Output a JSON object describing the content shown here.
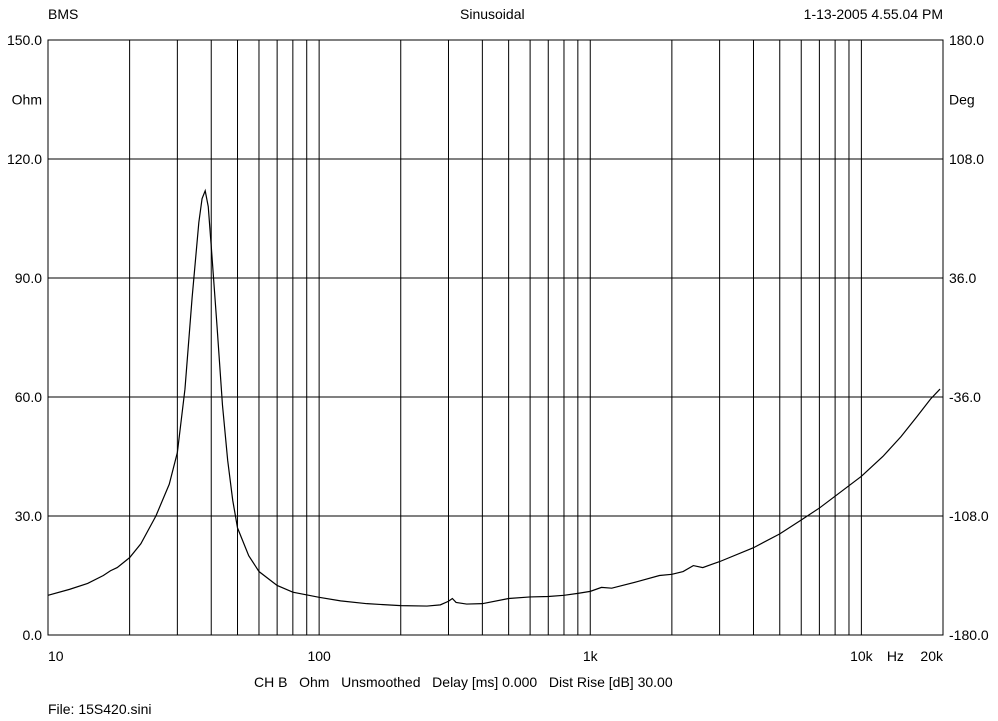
{
  "header": {
    "left": "BMS",
    "center": "Sinusoidal",
    "right": "1-13-2005 4.55.04 PM"
  },
  "footer": {
    "channel_info": "CH B   Ohm   Unsmoothed   Delay [ms] 0.000   Dist Rise [dB] 30.00",
    "file": "File: 15S420.sini"
  },
  "colors": {
    "grid": "#000000",
    "curve": "#000000",
    "background": "#ffffff"
  },
  "chart_data": {
    "type": "line",
    "title": "Sinusoidal",
    "x_scale": "log",
    "xlim": [
      10,
      20000
    ],
    "ylim": [
      0,
      150
    ],
    "y2lim": [
      -180,
      180
    ],
    "grid": true,
    "x_tick_labels": [
      {
        "value": 10,
        "label": "10"
      },
      {
        "value": 100,
        "label": "100"
      },
      {
        "value": 1000,
        "label": "1k"
      },
      {
        "value": 10000,
        "label": "10k"
      },
      {
        "value": 20000,
        "label": "20k"
      }
    ],
    "x_unit": "Hz",
    "y_ticks": [
      0,
      30,
      60,
      90,
      120,
      150
    ],
    "y_tick_labels": [
      "0.0",
      "30.0",
      "60.0",
      "90.0",
      "120.0",
      "150.0"
    ],
    "y_unit": "Ohm",
    "y2_ticks": [
      -180,
      -108,
      -36,
      36,
      108,
      180
    ],
    "y2_tick_labels": [
      "-180.0",
      "-108.0",
      "-36.0",
      "36.0",
      "108.0",
      "180.0"
    ],
    "y2_unit": "Deg",
    "series": [
      {
        "x": [
          10,
          12,
          14,
          16,
          17,
          18,
          20,
          22,
          25,
          28,
          30,
          32,
          34,
          36,
          37,
          38,
          39,
          40,
          42,
          44,
          46,
          48,
          50,
          55,
          60,
          70,
          80,
          100,
          120,
          150,
          200,
          250,
          280,
          300,
          310,
          320,
          350,
          400,
          500,
          600,
          700,
          800,
          900,
          1000,
          1100,
          1200,
          1500,
          1800,
          2000,
          2200,
          2400,
          2600,
          2800,
          3000,
          4000,
          5000,
          6000,
          7000,
          8000,
          10000,
          12000,
          14000,
          16000,
          18000,
          19500
        ],
        "y": [
          10,
          11.5,
          13,
          15,
          16.2,
          17,
          19.5,
          23,
          30,
          38,
          46,
          62,
          85,
          104,
          110,
          112,
          108,
          98,
          78,
          58,
          44,
          34,
          27,
          20,
          16,
          12.5,
          10.8,
          9.5,
          8.6,
          7.9,
          7.4,
          7.3,
          7.6,
          8.5,
          9.2,
          8.2,
          7.8,
          7.9,
          9.2,
          9.6,
          9.7,
          10,
          10.5,
          11,
          12,
          11.8,
          13.5,
          15,
          15.3,
          16,
          17.5,
          17,
          17.8,
          18.5,
          22,
          25.5,
          29,
          32,
          35,
          40,
          45,
          50,
          55,
          59.5,
          62
        ]
      }
    ]
  }
}
